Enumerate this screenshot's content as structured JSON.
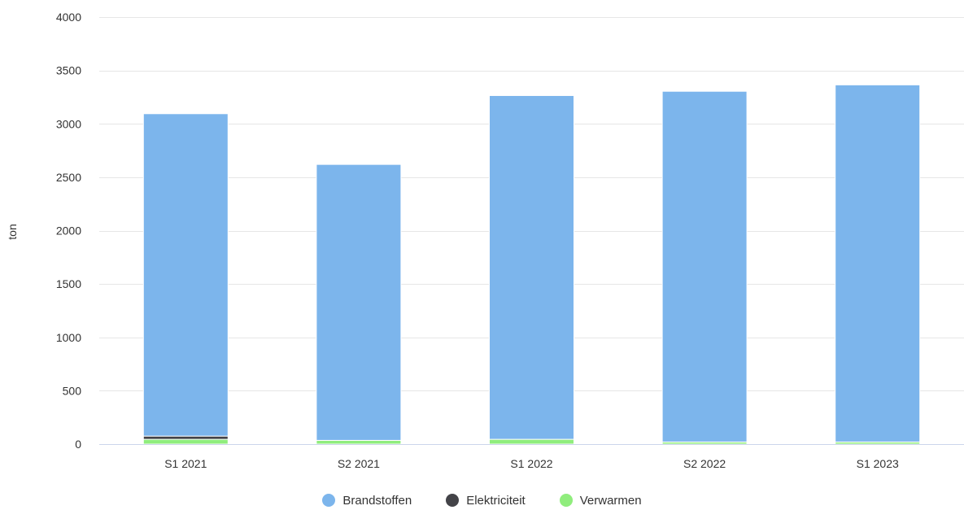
{
  "chart_data": {
    "type": "bar",
    "stacked": true,
    "categories": [
      "S1 2021",
      "S2 2021",
      "S1 2022",
      "S2 2022",
      "S1 2023"
    ],
    "series": [
      {
        "name": "Verwarmen",
        "color": "#90ed7d",
        "values": [
          45,
          35,
          45,
          20,
          20
        ]
      },
      {
        "name": "Elektriciteit",
        "color": "#434348",
        "values": [
          30,
          0,
          0,
          0,
          0
        ]
      },
      {
        "name": "Brandstoffen",
        "color": "#7cb5ec",
        "values": [
          3020,
          2585,
          3220,
          3285,
          3345
        ]
      }
    ],
    "legend_order": [
      "Brandstoffen",
      "Elektriciteit",
      "Verwarmen"
    ],
    "ylabel": "ton",
    "xlabel": "",
    "ylim": [
      0,
      4000
    ],
    "yticks": [
      0,
      500,
      1000,
      1500,
      2000,
      2500,
      3000,
      3500,
      4000
    ],
    "grid": true,
    "legend_position": "bottom-center"
  }
}
